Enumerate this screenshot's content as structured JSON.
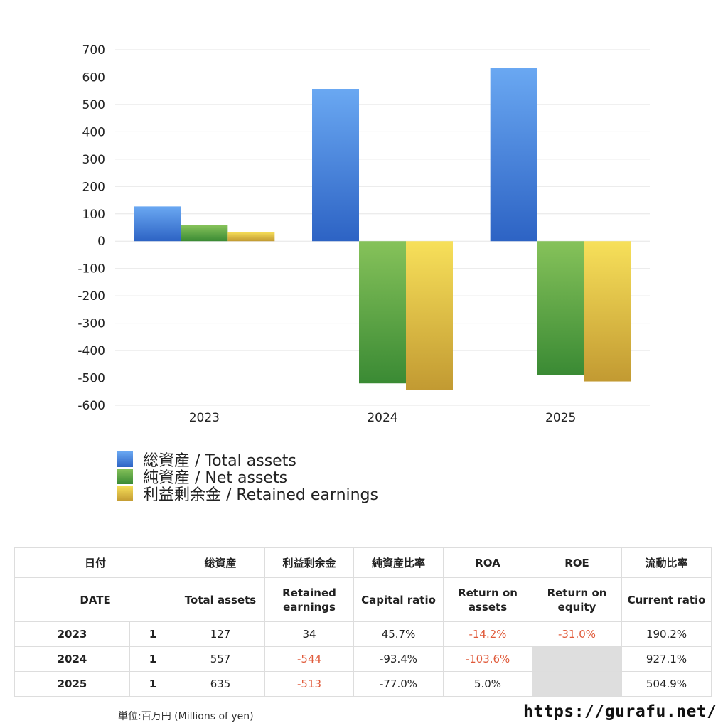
{
  "chart_data": {
    "type": "bar",
    "categories": [
      "2023",
      "2024",
      "2025"
    ],
    "series": [
      {
        "name": "総資産 / Total assets",
        "values": [
          127,
          557,
          635
        ]
      },
      {
        "name": "純資産 / Net assets",
        "values": [
          58,
          -520,
          -489
        ]
      },
      {
        "name": "利益剰余金 / Retained earnings",
        "values": [
          34,
          -544,
          -513
        ]
      }
    ],
    "ylim": [
      -600,
      700
    ],
    "yticks": [
      "700",
      "600",
      "500",
      "400",
      "300",
      "200",
      "100",
      "0",
      "-100",
      "-200",
      "-300",
      "-400",
      "-500",
      "-600"
    ],
    "grid": true,
    "legend_position": "bottom-left",
    "colors": {
      "total_assets": [
        "#6aa8f2",
        "#2d63c4"
      ],
      "net_assets": [
        "#86c25a",
        "#3a8a34"
      ],
      "retained_earnings": [
        "#f7e05a",
        "#c29a32"
      ]
    }
  },
  "table": {
    "headers_jp": [
      "日付",
      "",
      "総資産",
      "利益剰余金",
      "純資産比率",
      "ROA",
      "ROE",
      "流動比率"
    ],
    "headers_en": [
      "DATE",
      "",
      "Total assets",
      "Retained earnings",
      "Capital ratio",
      "Return on assets",
      "Return on equity",
      "Current ratio"
    ],
    "rows": [
      {
        "year": "2023",
        "count": "1",
        "total_assets": "127",
        "retained_earnings": "34",
        "capital_ratio": "45.7%",
        "roa": "-14.2%",
        "roe": "-31.0%",
        "current_ratio": "190.2%"
      },
      {
        "year": "2024",
        "count": "1",
        "total_assets": "557",
        "retained_earnings": "-544",
        "capital_ratio": "-93.4%",
        "roa": "-103.6%",
        "roe": "",
        "current_ratio": "927.1%"
      },
      {
        "year": "2025",
        "count": "1",
        "total_assets": "635",
        "retained_earnings": "-513",
        "capital_ratio": "-77.0%",
        "roa": "5.0%",
        "roe": "",
        "current_ratio": "504.9%"
      }
    ]
  },
  "footer": {
    "unit": "単位:百万円 (Millions of yen)",
    "url": "https://gurafu.net/"
  }
}
